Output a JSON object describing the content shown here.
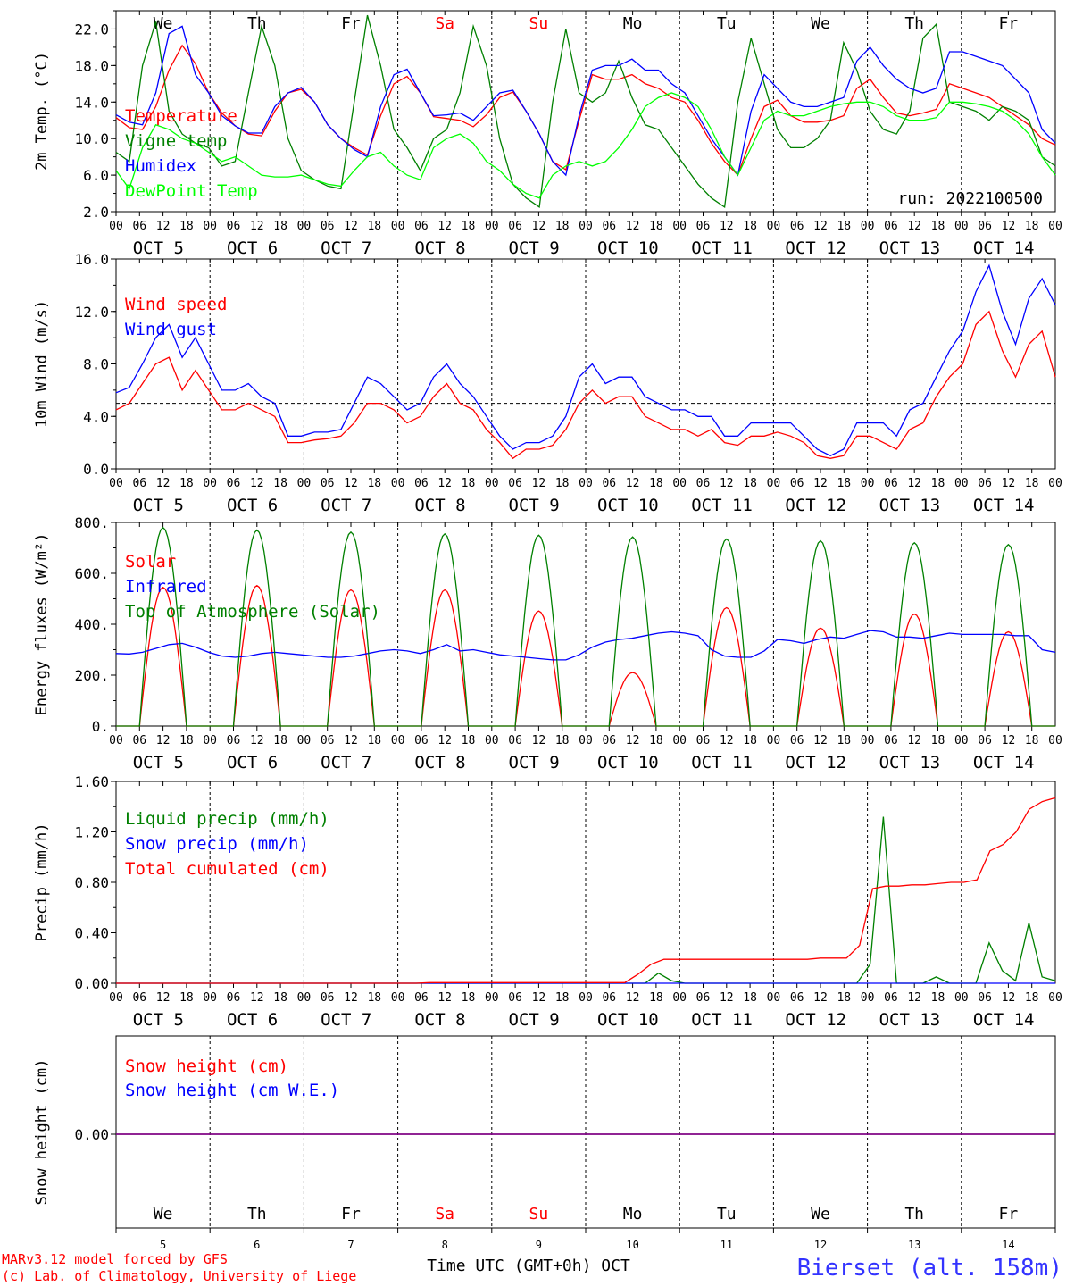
{
  "chart_data": [
    {
      "type": "line",
      "ylabel": "2m Temp. (°C)",
      "yticks": [
        "2.0",
        "6.0",
        "10.0",
        "14.0",
        "18.0",
        "22.0"
      ],
      "ylim": [
        2,
        24
      ],
      "run_label": "run: 2022100500",
      "series": [
        {
          "name": "Temperature",
          "color": "#ff0000",
          "values": [
            12.3,
            11.2,
            11.0,
            13.5,
            17.5,
            20.2,
            18.2,
            15.0,
            12.8,
            11.4,
            10.5,
            10.3,
            13.0,
            15.0,
            15.4,
            14.0,
            11.5,
            10.0,
            9.0,
            8.2,
            12.5,
            16.0,
            16.8,
            15.0,
            12.4,
            12.2,
            12.0,
            11.3,
            12.6,
            14.5,
            15.1,
            13.0,
            10.5,
            7.5,
            6.6,
            12.0,
            17.0,
            16.5,
            16.5,
            17.0,
            16.0,
            15.5,
            14.5,
            14.0,
            12.0,
            9.5,
            7.5,
            6.0,
            10.0,
            13.5,
            14.2,
            12.5,
            11.8,
            11.8,
            12.0,
            12.5,
            15.5,
            16.5,
            14.5,
            12.8,
            12.5,
            12.8,
            13.2,
            16.0,
            15.5,
            15.0,
            14.5,
            13.5,
            12.5,
            11.5,
            10.0,
            9.3
          ]
        },
        {
          "name": "Vigne temp",
          "color": "#008000",
          "values": [
            8.5,
            7.5,
            18.0,
            22.8,
            13.0,
            10.5,
            9.5,
            9.0,
            7.0,
            7.5,
            15.0,
            22.3,
            18.0,
            10.0,
            6.5,
            5.5,
            4.8,
            4.5,
            14.0,
            23.5,
            18.0,
            11.0,
            9.0,
            6.5,
            10.0,
            11.0,
            15.0,
            22.3,
            18.0,
            10.0,
            5.0,
            3.5,
            2.5,
            14.0,
            22.0,
            15.0,
            14.0,
            15.0,
            18.5,
            14.5,
            11.5,
            11.0,
            9.0,
            7.0,
            5.0,
            3.5,
            2.5,
            14.0,
            21.0,
            16.0,
            11.0,
            9.0,
            9.0,
            10.0,
            12.0,
            20.5,
            17.5,
            13.0,
            11.0,
            10.5,
            13.0,
            21.0,
            22.5,
            14.0,
            13.5,
            13.0,
            12.0,
            13.5,
            13.0,
            12.0,
            8.0,
            7.0
          ]
        },
        {
          "name": "Humidex",
          "color": "#0000ff",
          "values": [
            12.6,
            11.8,
            11.5,
            15.0,
            21.5,
            22.3,
            17.0,
            15.0,
            12.5,
            11.4,
            10.6,
            10.6,
            13.5,
            15.0,
            15.6,
            14.0,
            11.5,
            10.0,
            8.8,
            8.0,
            13.5,
            17.0,
            17.6,
            15.0,
            12.5,
            12.6,
            12.8,
            12.0,
            13.5,
            15.0,
            15.3,
            13.0,
            10.5,
            7.5,
            6.0,
            12.5,
            17.5,
            18.0,
            18.0,
            18.7,
            17.5,
            17.5,
            16.0,
            15.0,
            12.5,
            10.0,
            8.0,
            6.0,
            13.0,
            17.0,
            15.5,
            14.0,
            13.5,
            13.5,
            14.0,
            14.5,
            18.5,
            20.0,
            18.0,
            16.5,
            15.5,
            15.0,
            15.5,
            19.5,
            19.5,
            19.0,
            18.5,
            18.0,
            16.5,
            15.0,
            11.0,
            9.5
          ]
        },
        {
          "name": "DewPoint Temp",
          "color": "#00ff00",
          "values": [
            6.5,
            4.5,
            9.0,
            11.5,
            11.0,
            10.0,
            9.5,
            8.5,
            7.5,
            8.0,
            7.0,
            6.0,
            5.8,
            5.8,
            6.0,
            5.5,
            5.0,
            4.8,
            6.5,
            8.0,
            8.5,
            7.0,
            6.0,
            5.5,
            9.0,
            10.0,
            10.5,
            9.5,
            7.5,
            6.5,
            5.0,
            4.0,
            3.5,
            6.0,
            7.0,
            7.5,
            7.0,
            7.5,
            9.0,
            11.0,
            13.5,
            14.5,
            15.0,
            14.5,
            13.5,
            11.0,
            8.0,
            6.0,
            9.0,
            12.0,
            13.0,
            12.5,
            12.5,
            13.0,
            13.5,
            13.8,
            14.0,
            14.0,
            13.5,
            12.5,
            12.0,
            12.0,
            12.3,
            14.0,
            14.0,
            13.8,
            13.5,
            13.0,
            12.0,
            10.5,
            8.0,
            6.0
          ]
        }
      ]
    },
    {
      "type": "line",
      "ylabel": "10m Wind (m/s)",
      "yticks": [
        "0.0",
        "4.0",
        "8.0",
        "12.0",
        "16.0"
      ],
      "ylim": [
        0,
        16
      ],
      "reference_line": 5,
      "series": [
        {
          "name": "Wind speed",
          "color": "#ff0000",
          "values": [
            4.5,
            5.0,
            6.5,
            8.0,
            8.5,
            6.0,
            7.5,
            6.0,
            4.5,
            4.5,
            5.0,
            4.5,
            4.0,
            2.0,
            2.0,
            2.2,
            2.3,
            2.5,
            3.5,
            5.0,
            5.0,
            4.5,
            3.5,
            4.0,
            5.5,
            6.5,
            5.0,
            4.5,
            3.0,
            2.0,
            0.8,
            1.5,
            1.5,
            1.8,
            3.0,
            5.0,
            6.0,
            5.0,
            5.5,
            5.5,
            4.0,
            3.5,
            3.0,
            3.0,
            2.5,
            3.0,
            2.0,
            1.8,
            2.5,
            2.5,
            2.8,
            2.5,
            2.0,
            1.0,
            0.8,
            1.0,
            2.5,
            2.5,
            2.0,
            1.5,
            3.0,
            3.5,
            5.5,
            7.0,
            8.0,
            11.0,
            12.0,
            9.0,
            7.0,
            9.5,
            10.5,
            7.0
          ]
        },
        {
          "name": "Wind gust",
          "color": "#0000ff",
          "values": [
            5.8,
            6.2,
            8.0,
            10.0,
            11.0,
            8.5,
            10.0,
            8.0,
            6.0,
            6.0,
            6.5,
            5.5,
            5.0,
            2.5,
            2.5,
            2.8,
            2.8,
            3.0,
            5.0,
            7.0,
            6.5,
            5.5,
            4.5,
            5.0,
            7.0,
            8.0,
            6.5,
            5.5,
            4.0,
            2.5,
            1.5,
            2.0,
            2.0,
            2.5,
            4.0,
            7.0,
            8.0,
            6.5,
            7.0,
            7.0,
            5.5,
            5.0,
            4.5,
            4.5,
            4.0,
            4.0,
            2.5,
            2.5,
            3.5,
            3.5,
            3.5,
            3.5,
            2.5,
            1.5,
            1.0,
            1.5,
            3.5,
            3.5,
            3.5,
            2.5,
            4.5,
            5.0,
            7.0,
            9.0,
            10.5,
            13.5,
            15.5,
            12.0,
            9.5,
            13.0,
            14.5,
            12.5
          ]
        }
      ]
    },
    {
      "type": "line",
      "ylabel": "Energy fluxes (W/m²)",
      "yticks": [
        "0.",
        "200.",
        "400.",
        "600.",
        "800."
      ],
      "ylim": [
        0,
        800
      ],
      "series": [
        {
          "name": "Solar",
          "color": "#ff0000",
          "peaks": [
            545,
            552,
            535,
            535,
            452,
            210,
            465,
            385,
            440,
            370
          ]
        },
        {
          "name": "Infrared",
          "color": "#0000ff",
          "values": [
            285,
            283,
            290,
            305,
            320,
            325,
            310,
            290,
            275,
            270,
            275,
            285,
            290,
            285,
            280,
            275,
            270,
            270,
            275,
            285,
            295,
            300,
            295,
            285,
            300,
            320,
            295,
            300,
            290,
            280,
            275,
            270,
            265,
            260,
            260,
            280,
            310,
            330,
            340,
            345,
            355,
            365,
            370,
            365,
            355,
            300,
            275,
            270,
            270,
            295,
            340,
            335,
            325,
            340,
            350,
            345,
            360,
            375,
            370,
            350,
            350,
            345,
            355,
            365,
            360,
            360,
            360,
            360,
            355,
            355,
            300,
            290
          ]
        },
        {
          "name": "Top of Atmosphere (Solar)",
          "color": "#008000",
          "peaks": [
            780,
            770,
            762,
            755,
            750,
            743,
            735,
            728,
            720,
            713
          ]
        }
      ]
    },
    {
      "type": "line",
      "ylabel": "Precip (mm/h)",
      "yticks": [
        "0.00",
        "0.40",
        "0.80",
        "1.20",
        "1.60"
      ],
      "ylim": [
        0,
        1.6
      ],
      "series": [
        {
          "name": "Liquid precip (mm/h)",
          "color": "#008000",
          "values": [
            0,
            0,
            0,
            0,
            0,
            0,
            0,
            0,
            0,
            0,
            0,
            0,
            0,
            0,
            0,
            0,
            0,
            0,
            0,
            0,
            0,
            0,
            0,
            0,
            0,
            0,
            0,
            0,
            0,
            0,
            0,
            0,
            0,
            0,
            0,
            0,
            0,
            0,
            0,
            0,
            0,
            0.08,
            0.02,
            0,
            0,
            0,
            0,
            0,
            0,
            0,
            0,
            0,
            0,
            0,
            0,
            0,
            0,
            0.15,
            1.32,
            0,
            0,
            0,
            0.05,
            0,
            0,
            0,
            0.32,
            0.1,
            0.02,
            0.48,
            0.05,
            0.02
          ]
        },
        {
          "name": "Snow precip (mm/h)",
          "color": "#0000ff",
          "values": [
            0,
            0,
            0,
            0,
            0,
            0,
            0,
            0,
            0,
            0,
            0,
            0,
            0,
            0,
            0,
            0,
            0,
            0,
            0,
            0,
            0,
            0,
            0,
            0,
            0,
            0,
            0,
            0,
            0,
            0,
            0,
            0,
            0,
            0,
            0,
            0,
            0,
            0,
            0,
            0,
            0,
            0,
            0,
            0,
            0,
            0,
            0,
            0,
            0,
            0,
            0,
            0,
            0,
            0,
            0,
            0,
            0,
            0,
            0,
            0,
            0,
            0,
            0,
            0,
            0,
            0,
            0,
            0,
            0,
            0,
            0,
            0
          ]
        },
        {
          "name": "Total cumulated (cm)",
          "color": "#ff0000",
          "values": [
            0,
            0,
            0,
            0,
            0,
            0,
            0,
            0,
            0,
            0,
            0,
            0,
            0,
            0,
            0,
            0,
            0,
            0,
            0,
            0,
            0,
            0,
            0,
            0,
            0.005,
            0.005,
            0.005,
            0.005,
            0.005,
            0.005,
            0.005,
            0.005,
            0.005,
            0.005,
            0.005,
            0.005,
            0.005,
            0.005,
            0.005,
            0.005,
            0.07,
            0.15,
            0.19,
            0.19,
            0.19,
            0.19,
            0.19,
            0.19,
            0.19,
            0.19,
            0.19,
            0.19,
            0.19,
            0.19,
            0.2,
            0.2,
            0.2,
            0.3,
            0.75,
            0.77,
            0.77,
            0.78,
            0.78,
            0.79,
            0.8,
            0.8,
            0.82,
            1.05,
            1.1,
            1.2,
            1.38,
            1.44,
            1.47
          ]
        }
      ]
    },
    {
      "type": "line",
      "ylabel": "Snow height (cm)",
      "yticks": [
        "0.00"
      ],
      "series": [
        {
          "name": "Snow height (cm)",
          "color": "#ff0000",
          "values": [
            0,
            0,
            0,
            0,
            0,
            0,
            0,
            0,
            0,
            0,
            0
          ]
        },
        {
          "name": "Snow height (cm W.E.)",
          "color": "#0000ff",
          "values": [
            0,
            0,
            0,
            0,
            0,
            0,
            0,
            0,
            0,
            0,
            0
          ]
        }
      ]
    }
  ],
  "day_abbrev": [
    "We",
    "Th",
    "Fr",
    "Sa",
    "Su",
    "Mo",
    "Tu",
    "We",
    "Th",
    "Fr"
  ],
  "day_abbrev_colors": [
    "#000000",
    "#000000",
    "#000000",
    "#ff0000",
    "#ff0000",
    "#000000",
    "#000000",
    "#000000",
    "#000000",
    "#000000"
  ],
  "hour_ticks": [
    "00",
    "06",
    "12",
    "18"
  ],
  "date_labels": [
    "OCT  5",
    "OCT  6",
    "OCT  7",
    "OCT  8",
    "OCT  9",
    "OCT 10",
    "OCT 11",
    "OCT 12",
    "OCT 13",
    "OCT 14"
  ],
  "bottom_day_numbers": [
    "5",
    "6",
    "7",
    "8",
    "9",
    "10",
    "11",
    "12",
    "13",
    "14"
  ],
  "xlabel": "Time UTC (GMT+0h) OCT",
  "credit_line1": "MARv3.12 model forced by GFS",
  "credit_line2": "(c) Lab. of Climatology, University of Liege",
  "station": "Bierset (alt. 158m)",
  "colors": {
    "red": "#ff0000",
    "green": "#008000",
    "blue": "#0000ff",
    "lightgreen": "#00ff00",
    "purple": "#800080"
  }
}
